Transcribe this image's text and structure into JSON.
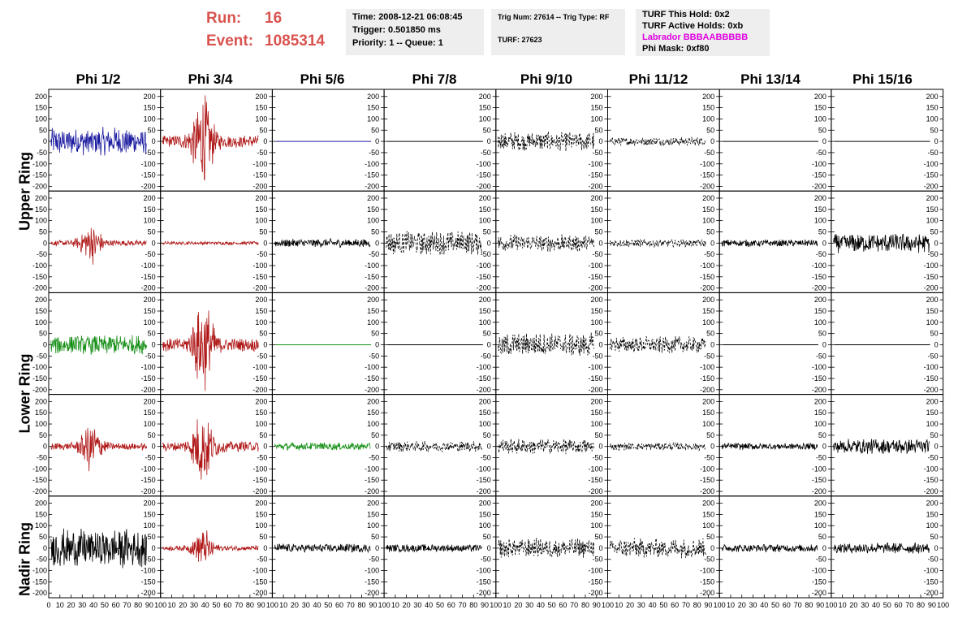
{
  "header": {
    "run_label": "Run:",
    "run_value": "16",
    "event_label": "Event:",
    "event_value": "1085314"
  },
  "info_time": {
    "time": "Time: 2008-12-21 06:08:45",
    "trigger": "Trigger: 0.501850 ms",
    "priority": "Priority: 1 -- Queue: 1"
  },
  "info_trig": {
    "trig": "Trig Num: 27614 -- Trig Type: RF",
    "turf": "TURF: 27623"
  },
  "info_turf": {
    "this_hold": "TURF This Hold: 0x2",
    "active_holds": "TURF Active Holds: 0xb",
    "labrador": "Labrador BBBAABBBBB",
    "phi_mask": "Phi Mask: 0xf80"
  },
  "colors": {
    "header_red": "#d9534f",
    "magenta": "#e000e0",
    "trace_blue": "#1a1aa0",
    "trace_red": "#b01818",
    "trace_green": "#189018",
    "trace_black": "#000000"
  },
  "chart_data": {
    "type": "line",
    "columns": [
      "Phi 1/2",
      "Phi 3/4",
      "Phi 5/6",
      "Phi 7/8",
      "Phi 9/10",
      "Phi 11/12",
      "Phi 13/14",
      "Phi 15/16"
    ],
    "ring_labels": [
      "Upper Ring",
      "Lower Ring",
      "Nadir Ring"
    ],
    "rows": 5,
    "ylim": [
      -210,
      210
    ],
    "yticks": [
      -200,
      -150,
      -100,
      -50,
      0,
      50,
      100,
      150,
      200
    ],
    "xlim": [
      0,
      100
    ],
    "xticks": [
      0,
      10,
      20,
      30,
      40,
      50,
      60,
      70,
      80,
      90,
      100
    ],
    "panels": [
      [
        {
          "color": "blue",
          "amp": 65,
          "style": "solid",
          "env": "flat"
        },
        {
          "color": "red",
          "amp": 200,
          "style": "solid",
          "env": "burst"
        },
        {
          "color": "blue",
          "amp": 0,
          "style": "flat",
          "env": "flat"
        },
        {
          "color": "black",
          "amp": 0,
          "style": "flat",
          "env": "flat"
        },
        {
          "color": "black",
          "amp": 45,
          "style": "dashed",
          "env": "flat"
        },
        {
          "color": "black",
          "amp": 20,
          "style": "dashed",
          "env": "flat"
        },
        {
          "color": "black",
          "amp": 0,
          "style": "flat",
          "env": "flat"
        },
        {
          "color": "black",
          "amp": 0,
          "style": "flat",
          "env": "flat"
        }
      ],
      [
        {
          "color": "red",
          "amp": 90,
          "style": "solid",
          "env": "burst"
        },
        {
          "color": "red",
          "amp": 8,
          "style": "solid",
          "env": "flat"
        },
        {
          "color": "black",
          "amp": 20,
          "style": "solid",
          "env": "flat"
        },
        {
          "color": "black",
          "amp": 55,
          "style": "dashed",
          "env": "flat"
        },
        {
          "color": "black",
          "amp": 40,
          "style": "dashed",
          "env": "flat"
        },
        {
          "color": "black",
          "amp": 18,
          "style": "dashed",
          "env": "flat"
        },
        {
          "color": "black",
          "amp": 16,
          "style": "solid",
          "env": "flat"
        },
        {
          "color": "black",
          "amp": 45,
          "style": "solid",
          "env": "flat"
        }
      ],
      [
        {
          "color": "green",
          "amp": 45,
          "style": "solid",
          "env": "flat"
        },
        {
          "color": "red",
          "amp": 200,
          "style": "solid",
          "env": "burst"
        },
        {
          "color": "green",
          "amp": 0,
          "style": "flat",
          "env": "flat"
        },
        {
          "color": "black",
          "amp": 0,
          "style": "flat",
          "env": "flat"
        },
        {
          "color": "black",
          "amp": 55,
          "style": "dashed",
          "env": "flat"
        },
        {
          "color": "black",
          "amp": 40,
          "style": "dashed",
          "env": "flat"
        },
        {
          "color": "black",
          "amp": 0,
          "style": "flat",
          "env": "flat"
        },
        {
          "color": "black",
          "amp": 0,
          "style": "flat",
          "env": "flat"
        }
      ],
      [
        {
          "color": "red",
          "amp": 110,
          "style": "solid",
          "env": "burst"
        },
        {
          "color": "red",
          "amp": 160,
          "style": "solid",
          "env": "burst"
        },
        {
          "color": "green",
          "amp": 18,
          "style": "solid",
          "env": "flat"
        },
        {
          "color": "black",
          "amp": 25,
          "style": "dashed",
          "env": "flat"
        },
        {
          "color": "black",
          "amp": 35,
          "style": "dashed",
          "env": "flat"
        },
        {
          "color": "black",
          "amp": 18,
          "style": "dashed",
          "env": "flat"
        },
        {
          "color": "black",
          "amp": 16,
          "style": "solid",
          "env": "flat"
        },
        {
          "color": "black",
          "amp": 35,
          "style": "solid",
          "env": "flat"
        }
      ],
      [
        {
          "color": "black",
          "amp": 90,
          "style": "solid",
          "env": "flat"
        },
        {
          "color": "red",
          "amp": 80,
          "style": "solid",
          "env": "burst"
        },
        {
          "color": "black",
          "amp": 20,
          "style": "solid",
          "env": "flat"
        },
        {
          "color": "black",
          "amp": 18,
          "style": "solid",
          "env": "flat"
        },
        {
          "color": "black",
          "amp": 45,
          "style": "dashed",
          "env": "flat"
        },
        {
          "color": "black",
          "amp": 45,
          "style": "dashed",
          "env": "flat"
        },
        {
          "color": "black",
          "amp": 18,
          "style": "solid",
          "env": "flat"
        },
        {
          "color": "black",
          "amp": 25,
          "style": "solid",
          "env": "flat"
        }
      ]
    ]
  }
}
